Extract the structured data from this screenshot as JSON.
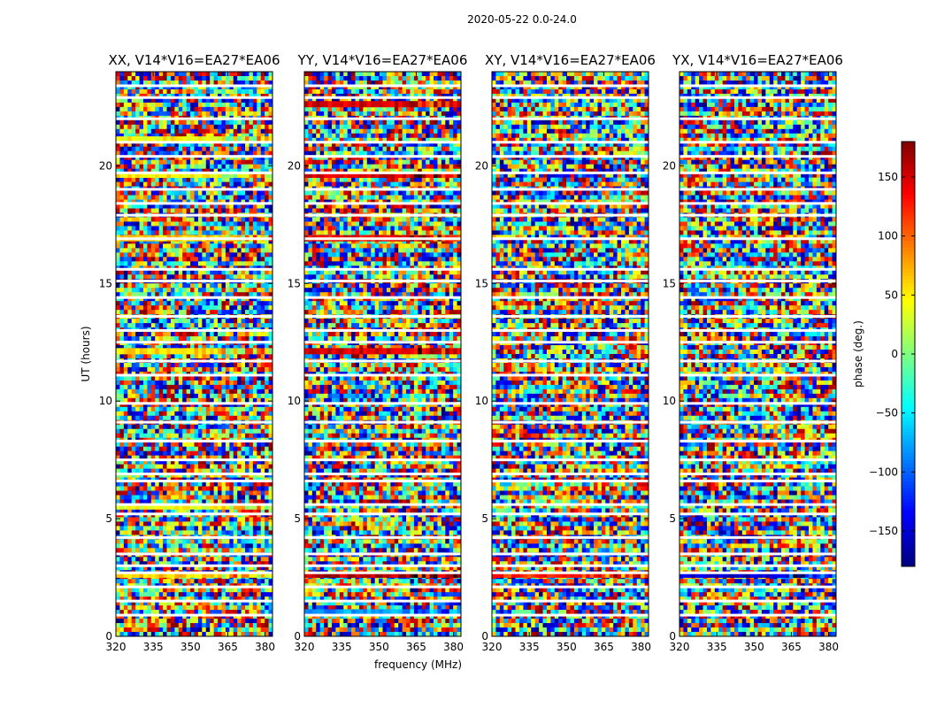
{
  "chart_data": {
    "type": "heatmap",
    "suptitle": "2020-05-22 0.0-24.0",
    "xlabel": "frequency (MHz)",
    "ylabel": "UT (hours)",
    "colorbar": {
      "label": "phase (deg.)",
      "range": [
        -180,
        180
      ],
      "ticks": [
        150,
        100,
        50,
        0,
        -50,
        -100,
        -150
      ],
      "tick_labels": [
        "150",
        "100",
        "50",
        "0",
        "−50",
        "−100",
        "−150"
      ],
      "colormap": "jet"
    },
    "xlim": [
      320,
      383
    ],
    "ylim": [
      0,
      24
    ],
    "xticks": [
      320,
      335,
      350,
      365,
      380
    ],
    "xtick_labels": [
      "320",
      "335",
      "350",
      "365",
      "380"
    ],
    "yticks": [
      0,
      5,
      10,
      15,
      20
    ],
    "ytick_labels": [
      "0",
      "5",
      "10",
      "15",
      "20"
    ],
    "flagged_bands_ut_hours": [
      0.9,
      1.5,
      2.1,
      2.7,
      3.0,
      3.5,
      4.2,
      5.2,
      5.6,
      6.6,
      6.9,
      7.5,
      8.3,
      9.1,
      9.9,
      11.1,
      11.7,
      12.5,
      13.0,
      13.6,
      14.4,
      15.1,
      15.6,
      16.9,
      17.9,
      18.4,
      19.0,
      19.7,
      20.4,
      21.0,
      22.0,
      22.9,
      23.4
    ],
    "panels": [
      {
        "title": "XX, V14*V16=EA27*EA06",
        "show_xlabel": false,
        "strong_bands": [
          {
            "t": 2.6,
            "phase": 60
          },
          {
            "t": 12.1,
            "phase": 55
          },
          {
            "t": 16.9,
            "phase": 65
          },
          {
            "t": 19.6,
            "phase": 50
          },
          {
            "t": 21.1,
            "phase": 45
          },
          {
            "t": 5.5,
            "phase": 40
          }
        ]
      },
      {
        "title": "YY, V14*V16=EA27*EA06",
        "show_xlabel": true,
        "strong_bands": [
          {
            "t": 2.6,
            "phase": 160
          },
          {
            "t": 12.1,
            "phase": 150
          },
          {
            "t": 16.9,
            "phase": 140
          },
          {
            "t": 19.6,
            "phase": 150
          },
          {
            "t": 22.6,
            "phase": 150
          },
          {
            "t": 1.0,
            "phase": -80
          }
        ]
      },
      {
        "title": "XY, V14*V16=EA27*EA06",
        "show_xlabel": false,
        "strong_bands": [
          {
            "t": 2.6,
            "phase": 120
          }
        ]
      },
      {
        "title": "YX, V14*V16=EA27*EA06",
        "show_xlabel": false,
        "strong_bands": [
          {
            "t": 2.6,
            "phase": -150
          }
        ]
      }
    ]
  }
}
